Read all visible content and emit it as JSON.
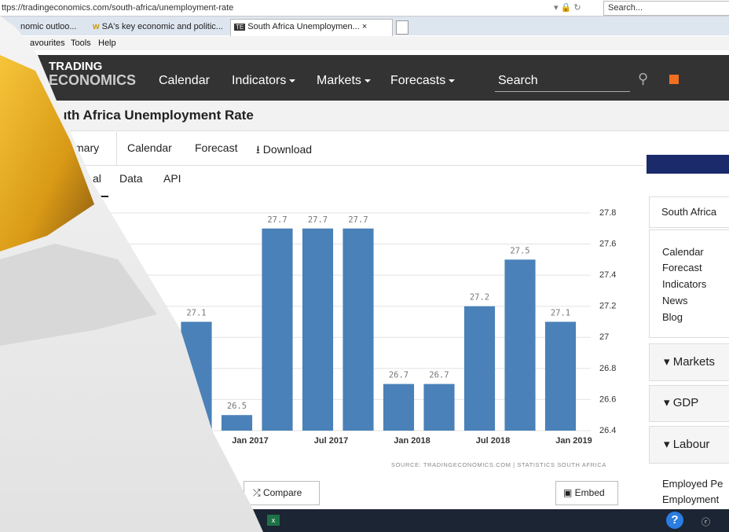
{
  "browser": {
    "url": "ttps://tradingeconomics.com/south-africa/unemployment-rate",
    "search": "Search...",
    "tabs": [
      "nomic outloo...",
      "SA's key economic and politic...",
      "South Africa Unemploymen..."
    ],
    "menu": [
      "avourites",
      "Tools",
      "Help"
    ]
  },
  "site": {
    "logo_top": "TRADING",
    "logo_bottom": "ECONOMICS",
    "nav": [
      "Calendar",
      "Indicators",
      "Markets",
      "Forecasts"
    ],
    "search": "Search"
  },
  "page": {
    "title": "uth Africa Unemployment Rate",
    "tabs": [
      "mary",
      "Calendar",
      "Forecast",
      "Download"
    ],
    "subtabs": [
      "al",
      "Data",
      "API"
    ],
    "source": "SOURCE: TRADINGECONOMICS.COM | STATISTICS SOUTH AFRICA",
    "compare": "Compare",
    "embed": "Embed"
  },
  "chart_data": {
    "type": "bar",
    "categories": [
      null,
      "Jan 2017",
      null,
      "Jul 2017",
      null,
      "Jan 2018",
      null,
      "Jul 2018",
      null,
      "Jan 2019"
    ],
    "values": [
      27.1,
      26.5,
      27.7,
      27.7,
      27.7,
      26.7,
      26.7,
      27.2,
      27.5,
      27.1
    ],
    "color": "#4a81b8",
    "ylim": [
      26.4,
      27.8
    ],
    "yticks": [
      26.4,
      26.6,
      26.8,
      27,
      27.2,
      27.4,
      27.6,
      27.8
    ],
    "grid": true
  },
  "sidebar": {
    "country": "South Africa",
    "links": [
      "Calendar",
      "Forecast",
      "Indicators",
      "News",
      "Blog"
    ],
    "sections": [
      "Markets",
      "GDP",
      "Labour"
    ],
    "items": [
      "Employed Pe",
      "Employment"
    ]
  }
}
